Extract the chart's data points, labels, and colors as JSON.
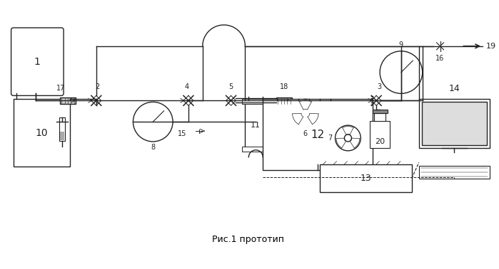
{
  "title": "Рис.1 прототип",
  "bg_color": "#ffffff",
  "line_color": "#222222",
  "lw": 1.0,
  "fig_w": 6.99,
  "fig_h": 3.78,
  "dpi": 100
}
